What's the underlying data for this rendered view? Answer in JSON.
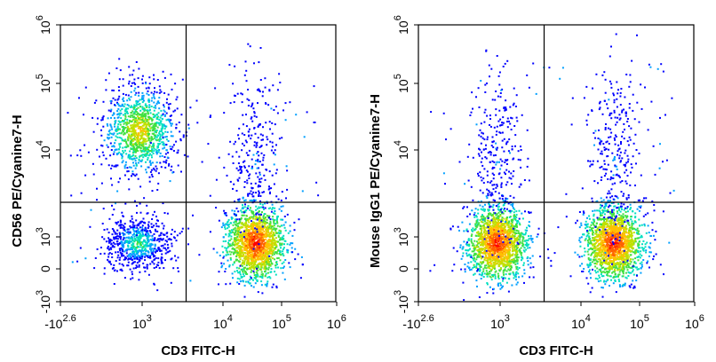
{
  "chart_data": [
    {
      "type": "scatter",
      "subtype": "flow-cytometry-density-dot-plot",
      "xlabel": "CD3 FITC-H",
      "ylabel": "CD56 PE/Cyanine7-H",
      "x_scale": "biexponential",
      "y_scale": "biexponential",
      "x_ticks": [
        {
          "base": "-10",
          "exp": "2.6"
        },
        {
          "base": "10",
          "exp": "3"
        },
        {
          "base": "10",
          "exp": "4"
        },
        {
          "base": "10",
          "exp": "5"
        },
        {
          "base": "10",
          "exp": "6"
        }
      ],
      "y_ticks": [
        {
          "base": "-10",
          "exp": "3"
        },
        {
          "base": "0",
          "exp": ""
        },
        {
          "base": "10",
          "exp": "3"
        },
        {
          "base": "10",
          "exp": "4"
        },
        {
          "base": "10",
          "exp": "5"
        },
        {
          "base": "10",
          "exp": "6"
        }
      ],
      "quadrant_gate": {
        "x": 3500,
        "y": 2500
      },
      "populations": [
        {
          "x_center": 500,
          "y_center": 20000,
          "density": "high"
        },
        {
          "x_center": 400,
          "y_center": 300,
          "density": "medium"
        },
        {
          "x_center": 35000,
          "y_center": 300,
          "density": "very high"
        },
        {
          "x_center": 35000,
          "y_center": 8000,
          "density": "low"
        }
      ],
      "grid": false,
      "legend": "none"
    },
    {
      "type": "scatter",
      "subtype": "flow-cytometry-density-dot-plot",
      "xlabel": "CD3 FITC-H",
      "ylabel": "Mouse IgG1 PE/Cyanine7-H",
      "x_scale": "biexponential",
      "y_scale": "biexponential",
      "x_ticks": [
        {
          "base": "-10",
          "exp": "2.6"
        },
        {
          "base": "10",
          "exp": "3"
        },
        {
          "base": "10",
          "exp": "4"
        },
        {
          "base": "10",
          "exp": "5"
        },
        {
          "base": "10",
          "exp": "6"
        }
      ],
      "y_ticks": [
        {
          "base": "-10",
          "exp": "3"
        },
        {
          "base": "0",
          "exp": ""
        },
        {
          "base": "10",
          "exp": "3"
        },
        {
          "base": "10",
          "exp": "4"
        },
        {
          "base": "10",
          "exp": "5"
        },
        {
          "base": "10",
          "exp": "6"
        }
      ],
      "quadrant_gate": {
        "x": 3500,
        "y": 2500
      },
      "populations": [
        {
          "x_center": 500,
          "y_center": 300,
          "density": "very high"
        },
        {
          "x_center": 35000,
          "y_center": 300,
          "density": "very high"
        },
        {
          "x_center": 500,
          "y_center": 8000,
          "density": "low"
        },
        {
          "x_center": 35000,
          "y_center": 8000,
          "density": "low"
        }
      ],
      "grid": false,
      "legend": "none"
    }
  ],
  "palette": [
    "#0000ff",
    "#00a0ff",
    "#00e0c0",
    "#40e040",
    "#c0e000",
    "#ffc000",
    "#ff6000",
    "#ff0000"
  ]
}
